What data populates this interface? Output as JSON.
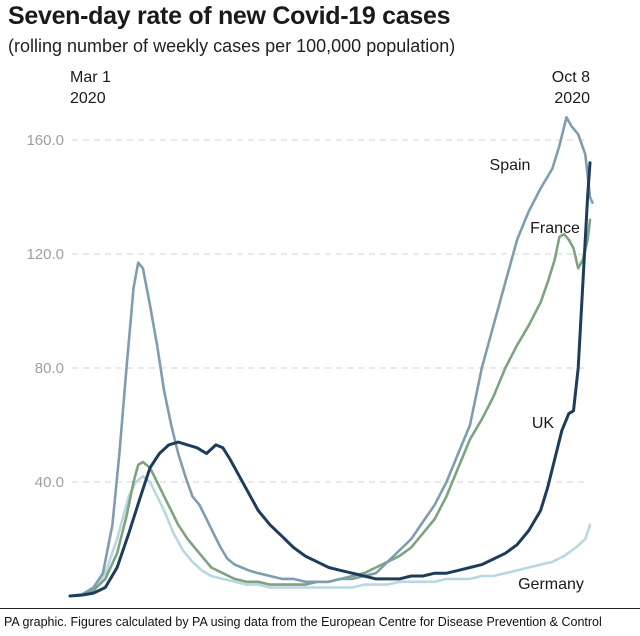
{
  "header": {
    "title": "Seven-day rate of new Covid-19 cases",
    "subtitle": "(rolling number of weekly cases per 100,000 population)"
  },
  "footer": {
    "source": "PA graphic. Figures calculated by PA using data from the European Centre for Disease Prevention & Control"
  },
  "chart_data": {
    "type": "line",
    "title": "Seven-day rate of new Covid-19 cases",
    "subtitle": "(rolling number of weekly cases per 100,000 population)",
    "xlabel": "",
    "ylabel": "",
    "x_start_label": [
      "Mar 1",
      "2020"
    ],
    "x_end_label": [
      "Oct 8",
      "2020"
    ],
    "x_unit": "day index from Mar 1 2020",
    "xlim": [
      0,
      221
    ],
    "ylim": [
      0,
      165
    ],
    "yticks": [
      40.0,
      80.0,
      120.0,
      160.0
    ],
    "ytick_labels": [
      "40.0",
      "80.0",
      "120.0",
      "160.0"
    ],
    "grid": true,
    "series": [
      {
        "name": "Spain",
        "color": "#7f9db0",
        "points": [
          [
            0,
            0
          ],
          [
            5,
            0.5
          ],
          [
            10,
            3
          ],
          [
            14,
            8
          ],
          [
            18,
            25
          ],
          [
            21,
            50
          ],
          [
            24,
            80
          ],
          [
            27,
            108
          ],
          [
            29,
            117
          ],
          [
            31,
            115
          ],
          [
            34,
            102
          ],
          [
            37,
            88
          ],
          [
            40,
            72
          ],
          [
            43,
            60
          ],
          [
            46,
            50
          ],
          [
            49,
            42
          ],
          [
            52,
            35
          ],
          [
            55,
            32
          ],
          [
            58,
            27
          ],
          [
            61,
            22
          ],
          [
            64,
            17
          ],
          [
            67,
            13
          ],
          [
            70,
            11
          ],
          [
            73,
            10
          ],
          [
            76,
            9
          ],
          [
            80,
            8
          ],
          [
            85,
            7
          ],
          [
            90,
            6
          ],
          [
            95,
            6
          ],
          [
            100,
            5
          ],
          [
            105,
            5
          ],
          [
            110,
            5
          ],
          [
            115,
            6
          ],
          [
            120,
            6
          ],
          [
            125,
            7
          ],
          [
            130,
            8
          ],
          [
            135,
            12
          ],
          [
            140,
            16
          ],
          [
            145,
            20
          ],
          [
            150,
            26
          ],
          [
            155,
            32
          ],
          [
            160,
            40
          ],
          [
            165,
            50
          ],
          [
            170,
            60
          ],
          [
            175,
            80
          ],
          [
            180,
            95
          ],
          [
            185,
            110
          ],
          [
            190,
            125
          ],
          [
            195,
            135
          ],
          [
            200,
            143
          ],
          [
            205,
            150
          ],
          [
            208,
            158
          ],
          [
            211,
            168
          ],
          [
            213,
            165
          ],
          [
            216,
            162
          ],
          [
            219,
            155
          ],
          [
            221,
            140
          ],
          [
            222,
            138
          ]
        ]
      },
      {
        "name": "France",
        "color": "#7ea47f",
        "points": [
          [
            0,
            0
          ],
          [
            5,
            0.5
          ],
          [
            10,
            2
          ],
          [
            15,
            6
          ],
          [
            20,
            15
          ],
          [
            24,
            28
          ],
          [
            27,
            40
          ],
          [
            29,
            46
          ],
          [
            31,
            47
          ],
          [
            34,
            45
          ],
          [
            37,
            40
          ],
          [
            40,
            35
          ],
          [
            43,
            30
          ],
          [
            46,
            25
          ],
          [
            50,
            20
          ],
          [
            55,
            15
          ],
          [
            60,
            10
          ],
          [
            65,
            8
          ],
          [
            70,
            6
          ],
          [
            75,
            5
          ],
          [
            80,
            5
          ],
          [
            85,
            4
          ],
          [
            90,
            4
          ],
          [
            95,
            4
          ],
          [
            100,
            4
          ],
          [
            105,
            5
          ],
          [
            110,
            5
          ],
          [
            115,
            6
          ],
          [
            120,
            7
          ],
          [
            125,
            8
          ],
          [
            130,
            10
          ],
          [
            135,
            12
          ],
          [
            140,
            14
          ],
          [
            145,
            17
          ],
          [
            150,
            22
          ],
          [
            155,
            27
          ],
          [
            160,
            35
          ],
          [
            165,
            45
          ],
          [
            170,
            55
          ],
          [
            175,
            62
          ],
          [
            180,
            70
          ],
          [
            185,
            80
          ],
          [
            190,
            88
          ],
          [
            195,
            95
          ],
          [
            200,
            103
          ],
          [
            203,
            110
          ],
          [
            206,
            118
          ],
          [
            208,
            126
          ],
          [
            210,
            127
          ],
          [
            212,
            125
          ],
          [
            214,
            122
          ],
          [
            216,
            115
          ],
          [
            218,
            118
          ],
          [
            220,
            125
          ],
          [
            221,
            132
          ]
        ]
      },
      {
        "name": "UK",
        "color": "#1d3d5c",
        "points": [
          [
            0,
            0
          ],
          [
            5,
            0.3
          ],
          [
            10,
            1
          ],
          [
            15,
            3
          ],
          [
            20,
            10
          ],
          [
            25,
            22
          ],
          [
            30,
            35
          ],
          [
            34,
            45
          ],
          [
            38,
            50
          ],
          [
            42,
            53
          ],
          [
            46,
            54
          ],
          [
            50,
            53
          ],
          [
            54,
            52
          ],
          [
            58,
            50
          ],
          [
            62,
            53
          ],
          [
            65,
            52
          ],
          [
            68,
            48
          ],
          [
            72,
            42
          ],
          [
            76,
            36
          ],
          [
            80,
            30
          ],
          [
            85,
            25
          ],
          [
            90,
            21
          ],
          [
            95,
            17
          ],
          [
            100,
            14
          ],
          [
            105,
            12
          ],
          [
            110,
            10
          ],
          [
            115,
            9
          ],
          [
            120,
            8
          ],
          [
            125,
            7
          ],
          [
            130,
            6
          ],
          [
            135,
            6
          ],
          [
            140,
            6
          ],
          [
            145,
            7
          ],
          [
            150,
            7
          ],
          [
            155,
            8
          ],
          [
            160,
            8
          ],
          [
            165,
            9
          ],
          [
            170,
            10
          ],
          [
            175,
            11
          ],
          [
            180,
            13
          ],
          [
            185,
            15
          ],
          [
            190,
            18
          ],
          [
            195,
            23
          ],
          [
            200,
            30
          ],
          [
            203,
            38
          ],
          [
            206,
            48
          ],
          [
            209,
            58
          ],
          [
            212,
            64
          ],
          [
            214,
            65
          ],
          [
            216,
            80
          ],
          [
            218,
            110
          ],
          [
            220,
            140
          ],
          [
            221,
            152
          ]
        ]
      },
      {
        "name": "Germany",
        "color": "#b9d7e0",
        "points": [
          [
            0,
            0
          ],
          [
            5,
            0.3
          ],
          [
            10,
            2
          ],
          [
            15,
            8
          ],
          [
            20,
            20
          ],
          [
            25,
            35
          ],
          [
            28,
            40
          ],
          [
            31,
            42
          ],
          [
            34,
            40
          ],
          [
            37,
            35
          ],
          [
            40,
            30
          ],
          [
            44,
            22
          ],
          [
            48,
            16
          ],
          [
            52,
            12
          ],
          [
            56,
            9
          ],
          [
            60,
            7
          ],
          [
            65,
            6
          ],
          [
            70,
            5
          ],
          [
            75,
            4
          ],
          [
            80,
            4
          ],
          [
            85,
            3
          ],
          [
            90,
            3
          ],
          [
            95,
            3
          ],
          [
            100,
            3
          ],
          [
            105,
            3
          ],
          [
            110,
            3
          ],
          [
            115,
            3
          ],
          [
            120,
            3
          ],
          [
            125,
            4
          ],
          [
            130,
            4
          ],
          [
            135,
            4
          ],
          [
            140,
            5
          ],
          [
            145,
            5
          ],
          [
            150,
            5
          ],
          [
            155,
            5
          ],
          [
            160,
            6
          ],
          [
            165,
            6
          ],
          [
            170,
            6
          ],
          [
            175,
            7
          ],
          [
            180,
            7
          ],
          [
            185,
            8
          ],
          [
            190,
            9
          ],
          [
            195,
            10
          ],
          [
            200,
            11
          ],
          [
            205,
            12
          ],
          [
            210,
            14
          ],
          [
            215,
            17
          ],
          [
            219,
            20
          ],
          [
            221,
            25
          ]
        ]
      }
    ],
    "series_label_text": [
      "Spain",
      "France",
      "UK",
      "Germany"
    ]
  }
}
